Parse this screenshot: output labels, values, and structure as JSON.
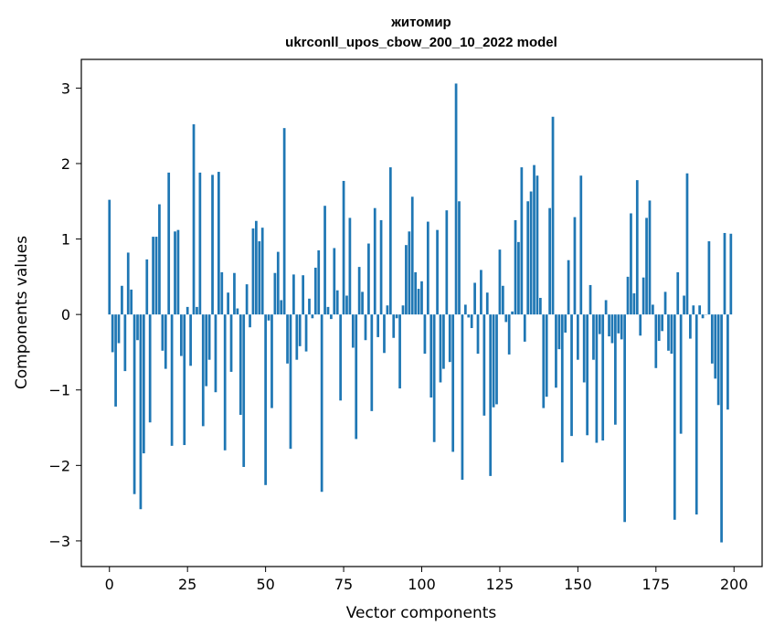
{
  "chart_data": {
    "type": "bar",
    "title": "житомир",
    "subtitle": "ukrconll_upos_cbow_200_10_2022 model",
    "xlabel": "Vector components",
    "ylabel": "Components values",
    "xlim": [
      -9,
      209
    ],
    "ylim": [
      -3.34,
      3.38
    ],
    "xticks": [
      0,
      25,
      50,
      75,
      100,
      125,
      150,
      175,
      200
    ],
    "xtick_labels": [
      "0",
      "25",
      "50",
      "75",
      "100",
      "125",
      "150",
      "175",
      "200"
    ],
    "yticks": [
      -3,
      -2,
      -1,
      0,
      1,
      2,
      3
    ],
    "ytick_labels": [
      "−3",
      "−2",
      "−1",
      "0",
      "1",
      "2",
      "3"
    ],
    "bar_color": "#1f77b4",
    "grid": false,
    "x": [
      0,
      1,
      2,
      3,
      4,
      5,
      6,
      7,
      8,
      9,
      10,
      11,
      12,
      13,
      14,
      15,
      16,
      17,
      18,
      19,
      20,
      21,
      22,
      23,
      24,
      25,
      26,
      27,
      28,
      29,
      30,
      31,
      32,
      33,
      34,
      35,
      36,
      37,
      38,
      39,
      40,
      41,
      42,
      43,
      44,
      45,
      46,
      47,
      48,
      49,
      50,
      51,
      52,
      53,
      54,
      55,
      56,
      57,
      58,
      59,
      60,
      61,
      62,
      63,
      64,
      65,
      66,
      67,
      68,
      69,
      70,
      71,
      72,
      73,
      74,
      75,
      76,
      77,
      78,
      79,
      80,
      81,
      82,
      83,
      84,
      85,
      86,
      87,
      88,
      89,
      90,
      91,
      92,
      93,
      94,
      95,
      96,
      97,
      98,
      99,
      100,
      101,
      102,
      103,
      104,
      105,
      106,
      107,
      108,
      109,
      110,
      111,
      112,
      113,
      114,
      115,
      116,
      117,
      118,
      119,
      120,
      121,
      122,
      123,
      124,
      125,
      126,
      127,
      128,
      129,
      130,
      131,
      132,
      133,
      134,
      135,
      136,
      137,
      138,
      139,
      140,
      141,
      142,
      143,
      144,
      145,
      146,
      147,
      148,
      149,
      150,
      151,
      152,
      153,
      154,
      155,
      156,
      157,
      158,
      159,
      160,
      161,
      162,
      163,
      164,
      165,
      166,
      167,
      168,
      169,
      170,
      171,
      172,
      173,
      174,
      175,
      176,
      177,
      178,
      179,
      180,
      181,
      182,
      183,
      184,
      185,
      186,
      187,
      188,
      189,
      190,
      191,
      192,
      193,
      194,
      195,
      196,
      197,
      198,
      199
    ],
    "values": [
      1.52,
      -0.5,
      -1.22,
      -0.38,
      0.38,
      -0.75,
      0.82,
      0.33,
      -2.38,
      -0.34,
      -2.58,
      -1.84,
      0.73,
      -1.43,
      1.03,
      1.03,
      1.46,
      -0.48,
      -0.72,
      1.88,
      -1.74,
      1.1,
      1.12,
      -0.55,
      -1.73,
      0.1,
      -0.68,
      2.52,
      0.1,
      1.88,
      -1.48,
      -0.95,
      -0.6,
      1.85,
      -1.03,
      1.89,
      0.56,
      -1.8,
      0.29,
      -0.76,
      0.55,
      0.08,
      -1.33,
      -2.02,
      0.4,
      -0.17,
      1.14,
      1.24,
      0.97,
      1.15,
      -2.26,
      -0.08,
      -1.24,
      0.55,
      0.83,
      0.19,
      2.47,
      -0.65,
      -1.78,
      0.53,
      -0.6,
      -0.42,
      0.52,
      -0.49,
      0.21,
      -0.05,
      0.62,
      0.85,
      -2.35,
      1.44,
      0.1,
      -0.06,
      0.88,
      0.32,
      -1.14,
      1.77,
      0.25,
      1.28,
      -0.44,
      -1.65,
      0.63,
      0.3,
      -0.34,
      0.94,
      -1.28,
      1.41,
      -0.3,
      1.25,
      -0.51,
      0.12,
      1.95,
      -0.31,
      -0.05,
      -0.98,
      0.12,
      0.92,
      1.1,
      1.56,
      0.56,
      0.34,
      0.44,
      -0.52,
      1.23,
      -1.1,
      -1.69,
      1.12,
      -0.9,
      -0.72,
      1.38,
      -0.63,
      -1.82,
      3.06,
      1.5,
      -2.19,
      0.13,
      -0.04,
      -0.18,
      0.42,
      -0.52,
      0.59,
      -1.34,
      0.29,
      -2.14,
      -1.23,
      -1.19,
      0.86,
      0.38,
      -0.1,
      -0.53,
      0.04,
      1.25,
      0.96,
      1.95,
      -0.36,
      1.5,
      1.63,
      1.98,
      1.84,
      0.22,
      -1.24,
      -1.09,
      1.41,
      2.62,
      -0.97,
      -0.46,
      -1.96,
      -0.24,
      0.72,
      -1.61,
      1.29,
      -0.6,
      1.84,
      -0.9,
      -1.6,
      0.39,
      -0.6,
      -1.7,
      -0.26,
      -1.67,
      0.19,
      -0.29,
      -0.38,
      -1.46,
      -0.25,
      -0.33,
      -2.75,
      0.5,
      1.34,
      0.28,
      1.78,
      -0.28,
      0.49,
      1.28,
      1.51,
      0.13,
      -0.71,
      -0.35,
      -0.22,
      0.3,
      -0.48,
      -0.52,
      -2.72,
      0.56,
      -1.58,
      0.25,
      1.87,
      -0.32,
      0.12,
      -2.65,
      0.12,
      -0.05,
      0.0,
      0.97,
      -0.65,
      -0.85,
      -1.2,
      -3.02,
      1.08,
      -1.26,
      1.07
    ]
  }
}
